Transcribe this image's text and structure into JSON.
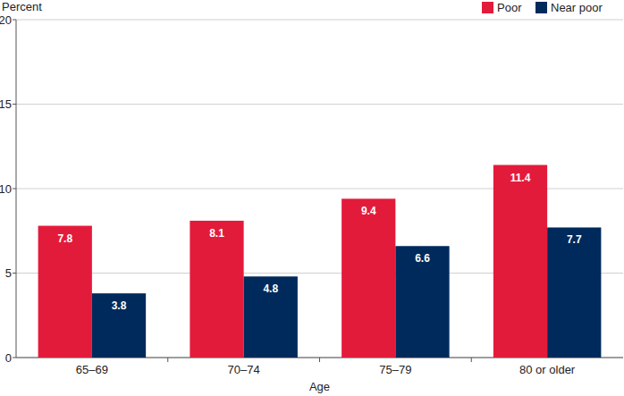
{
  "chart_data": {
    "type": "bar",
    "y_label": "Percent",
    "x_label": "Age",
    "categories": [
      "65–69",
      "70–74",
      "75–79",
      "80 or older"
    ],
    "series": [
      {
        "name": "Poor",
        "color": "#e31b3b",
        "values": [
          7.8,
          8.1,
          9.4,
          11.4
        ]
      },
      {
        "name": "Near poor",
        "color": "#002a5c",
        "values": [
          3.8,
          4.8,
          6.6,
          7.7
        ]
      }
    ],
    "ylim": [
      0,
      20
    ],
    "yticks": [
      0,
      5,
      10,
      15,
      20
    ],
    "grid": true,
    "legend": "top-right",
    "data_labels": true
  }
}
